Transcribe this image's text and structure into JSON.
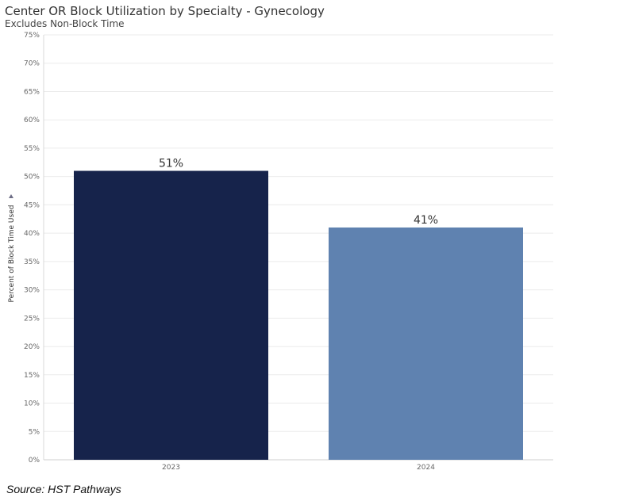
{
  "chart_data": {
    "type": "bar",
    "title": "Center OR Block Utilization by Specialty - Gynecology",
    "subtitle": "Excludes Non-Block Time",
    "xlabel": "",
    "ylabel": "Percent of Block Time Used",
    "ylim": [
      0,
      75
    ],
    "yticks": [
      "0%",
      "5%",
      "10%",
      "15%",
      "20%",
      "25%",
      "30%",
      "35%",
      "40%",
      "45%",
      "50%",
      "55%",
      "60%",
      "65%",
      "70%",
      "75%"
    ],
    "categories": [
      "2023",
      "2024"
    ],
    "values": [
      51,
      41
    ],
    "value_labels": [
      "51%",
      "41%"
    ],
    "colors": [
      "#16234b",
      "#5f82b0"
    ],
    "grid": true
  },
  "source": "Source: HST Pathways"
}
